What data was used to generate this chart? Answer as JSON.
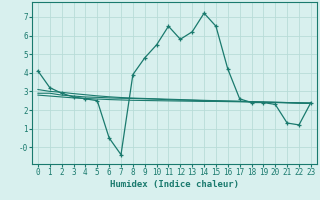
{
  "x": [
    0,
    1,
    2,
    3,
    4,
    5,
    6,
    7,
    8,
    9,
    10,
    11,
    12,
    13,
    14,
    15,
    16,
    17,
    18,
    19,
    20,
    21,
    22,
    23
  ],
  "line_main": [
    4.1,
    3.2,
    2.9,
    2.7,
    2.6,
    2.5,
    0.5,
    -0.4,
    3.9,
    4.8,
    5.5,
    6.5,
    5.8,
    6.2,
    7.2,
    6.5,
    4.2,
    2.6,
    2.4,
    2.4,
    2.3,
    1.3,
    1.2,
    2.4
  ],
  "line_trend1": [
    2.9,
    2.9,
    2.8,
    2.75,
    2.7,
    2.68,
    2.65,
    2.63,
    2.62,
    2.6,
    2.58,
    2.55,
    2.53,
    2.52,
    2.5,
    2.49,
    2.48,
    2.47,
    2.45,
    2.43,
    2.42,
    2.4,
    2.38,
    2.37
  ],
  "line_trend2": [
    3.1,
    3.0,
    2.95,
    2.88,
    2.82,
    2.76,
    2.71,
    2.67,
    2.64,
    2.62,
    2.6,
    2.58,
    2.56,
    2.54,
    2.52,
    2.5,
    2.48,
    2.46,
    2.44,
    2.42,
    2.4,
    2.38,
    2.36,
    2.35
  ],
  "line_flat": [
    2.8,
    2.75,
    2.7,
    2.65,
    2.62,
    2.59,
    2.56,
    2.54,
    2.52,
    2.51,
    2.5,
    2.49,
    2.48,
    2.47,
    2.46,
    2.46,
    2.45,
    2.44,
    2.43,
    2.42,
    2.41,
    2.4,
    2.39,
    2.38
  ],
  "color_main": "#1a7a6e",
  "color_trend": "#1a7a6e",
  "bg_color": "#d8f0ee",
  "grid_color": "#b8dcd8",
  "xlabel": "Humidex (Indice chaleur)",
  "xlim": [
    -0.5,
    23.5
  ],
  "ylim": [
    -0.9,
    7.8
  ],
  "yticks": [
    0,
    1,
    2,
    3,
    4,
    5,
    6,
    7
  ],
  "ytick_labels": [
    "-0",
    "1",
    "2",
    "3",
    "4",
    "5",
    "6",
    "7"
  ],
  "xticks": [
    0,
    1,
    2,
    3,
    4,
    5,
    6,
    7,
    8,
    9,
    10,
    11,
    12,
    13,
    14,
    15,
    16,
    17,
    18,
    19,
    20,
    21,
    22,
    23
  ],
  "tick_fontsize": 5.5,
  "label_fontsize": 6.5
}
